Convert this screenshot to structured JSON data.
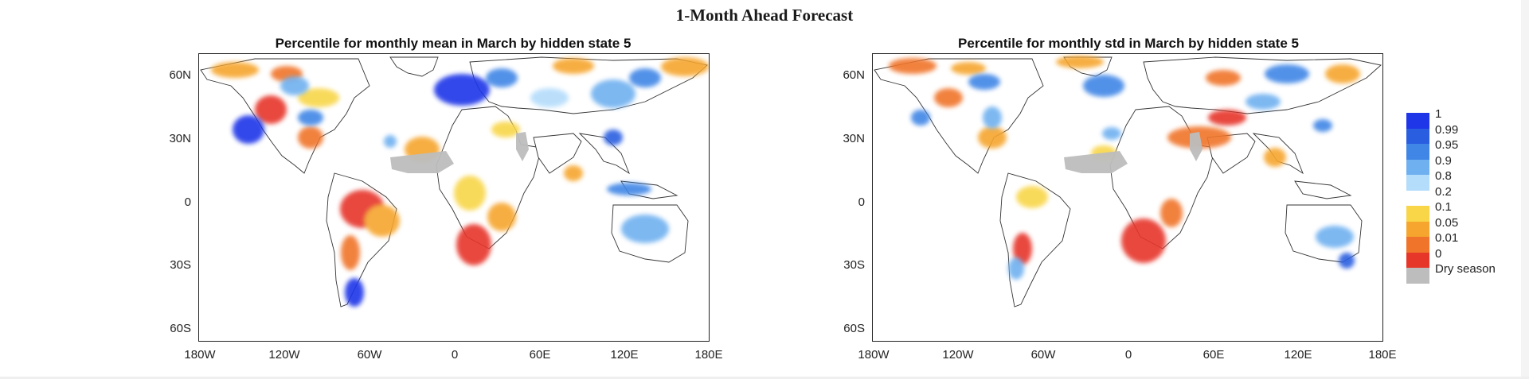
{
  "figure": {
    "title": "1-Month Ahead Forecast"
  },
  "panels": [
    {
      "title": "Percentile for monthly mean in March by hidden state 5"
    },
    {
      "title": "Percentile for monthly std in March by hidden state 5"
    }
  ],
  "axes": {
    "lat_labels": [
      "60N",
      "30N",
      "0",
      "30S",
      "60S"
    ],
    "lon_labels": [
      "180W",
      "120W",
      "60W",
      "0",
      "60E",
      "120E",
      "180E"
    ]
  },
  "legend": {
    "labels": [
      "1",
      "0.99",
      "0.95",
      "0.9",
      "0.8",
      "0.2",
      "0.1",
      "0.05",
      "0.01",
      "0",
      "Dry season"
    ],
    "colors": [
      "#1f35e8",
      "#2a5ee0",
      "#3f86e6",
      "#6fb1f0",
      "#b4dcfb",
      "#ffffff",
      "#f8d648",
      "#f6a62f",
      "#f0742a",
      "#e6362a",
      "#bdbdbd"
    ]
  }
}
